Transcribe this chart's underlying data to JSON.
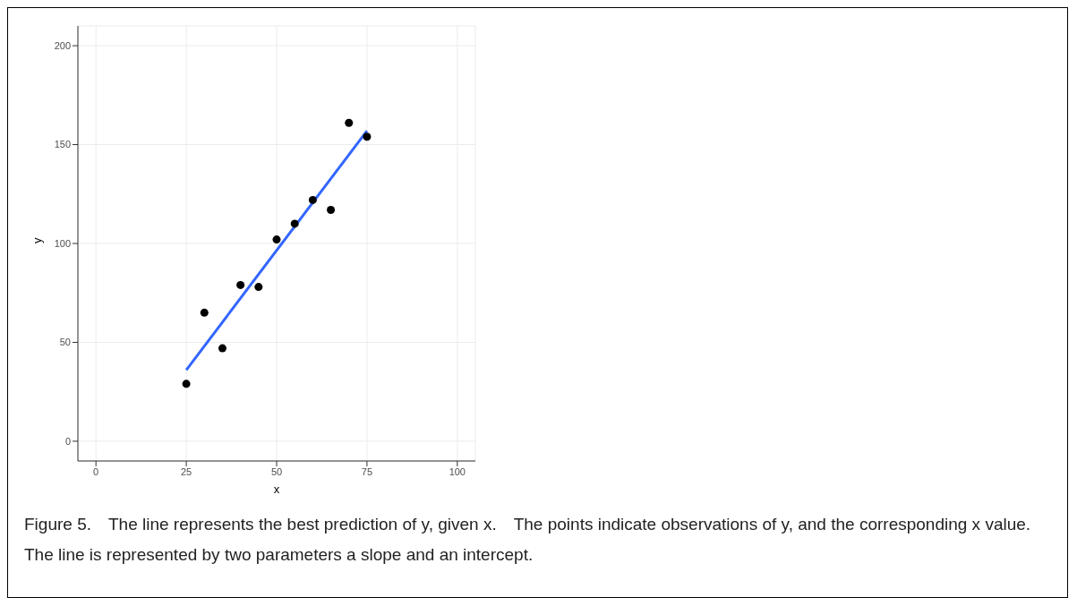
{
  "chart_data": {
    "type": "scatter",
    "xlabel": "x",
    "ylabel": "y",
    "series": [
      {
        "color": "#000000",
        "x": [
          25,
          30,
          35,
          40,
          45,
          50,
          55,
          60,
          65,
          70,
          75
        ],
        "values": [
          29,
          65,
          47,
          79,
          78,
          102,
          110,
          122,
          117,
          161,
          154
        ]
      },
      {
        "type": "line",
        "marker": "none",
        "color": "#3366ff",
        "x": [
          25,
          75
        ],
        "values": [
          36,
          157
        ]
      }
    ],
    "xlim": [
      -5,
      105
    ],
    "xticks": [
      0,
      25,
      50,
      75,
      100
    ],
    "ylim": [
      -10,
      210
    ],
    "yticks": [
      0,
      50,
      100,
      150,
      200
    ],
    "grid": true,
    "marker": "circle",
    "annotations": [
      "Figure 5.　The line represents the best prediction of y, given x.　The points indicate observations of y, and the corresponding x value.　The line is represented by two parameters a slope and an intercept."
    ]
  }
}
